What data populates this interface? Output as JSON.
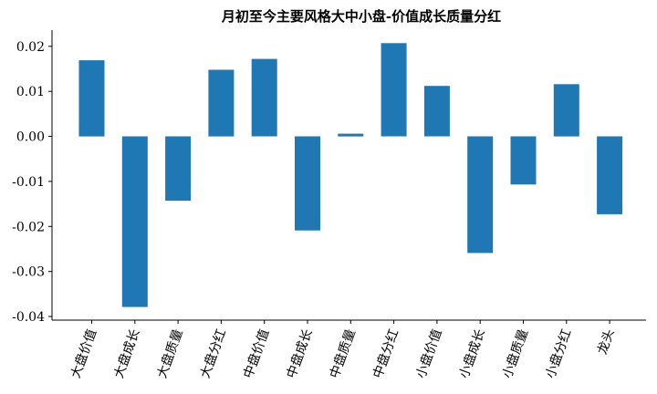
{
  "chart_data": {
    "type": "bar",
    "title": "月初至今主要风格大中小盘-价值成长质量分红",
    "xlabel": "",
    "ylabel": "",
    "categories": [
      "大盘价值",
      "大盘成长",
      "大盘质量",
      "大盘分红",
      "中盘价值",
      "中盘成长",
      "中盘质量",
      "中盘分红",
      "小盘价值",
      "小盘成长",
      "小盘质量",
      "小盘分红",
      "龙头"
    ],
    "values": [
      0.0169,
      -0.0379,
      -0.0143,
      0.0148,
      0.0172,
      -0.0209,
      0.0006,
      0.0207,
      0.0112,
      -0.0259,
      -0.0107,
      0.0116,
      -0.0173
    ],
    "ylim": [
      -0.0408,
      0.0236
    ],
    "yticks": [
      0.02,
      0.01,
      0.0,
      -0.01,
      -0.02,
      -0.03,
      -0.04
    ],
    "ytick_labels": [
      "0.02",
      "0.01",
      "0.00",
      "-0.01",
      "-0.02",
      "-0.03",
      "-0.04"
    ],
    "bar_color": "#1f77b4",
    "grid": false,
    "legend": "none"
  }
}
